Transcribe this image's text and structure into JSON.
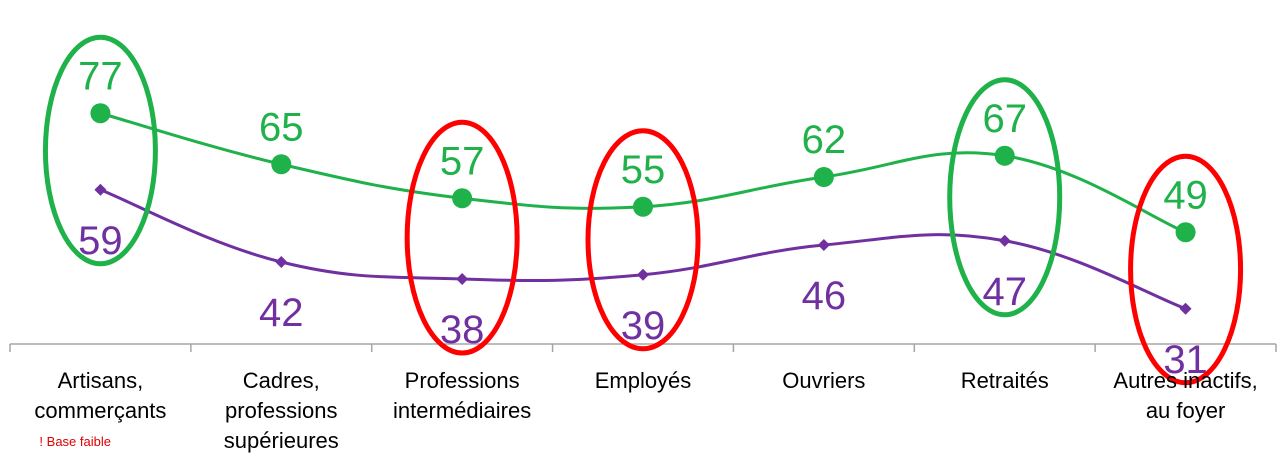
{
  "chart_data": {
    "type": "line",
    "title": "",
    "xlabel": "",
    "ylabel": "",
    "categories": [
      [
        "Artisans,",
        "commerçants"
      ],
      [
        "Cadres,",
        "professions",
        "supérieures"
      ],
      [
        "Professions",
        "intermédiaires"
      ],
      [
        "Employés"
      ],
      [
        "Ouvriers"
      ],
      [
        "Retraités"
      ],
      [
        "Autres inactifs,",
        "au foyer"
      ]
    ],
    "series": [
      {
        "color": "#1fb14a",
        "marker": "circle",
        "values": [
          77,
          65,
          57,
          55,
          62,
          67,
          49
        ]
      },
      {
        "color": "#7030a0",
        "marker": "diamond",
        "values": [
          59,
          42,
          38,
          39,
          46,
          47,
          31
        ]
      }
    ],
    "highlights": [
      {
        "category_index": 0,
        "color": "#1fb14a"
      },
      {
        "category_index": 2,
        "color": "#ff0000"
      },
      {
        "category_index": 3,
        "color": "#ff0000"
      },
      {
        "category_index": 5,
        "color": "#1fb14a"
      },
      {
        "category_index": 6,
        "color": "#ff0000"
      }
    ],
    "notes": [
      {
        "category_index": 0,
        "text": "! Base faible",
        "color": "#e00000"
      }
    ],
    "ylim": [
      25,
      85
    ],
    "grid": false,
    "legend": "none"
  }
}
